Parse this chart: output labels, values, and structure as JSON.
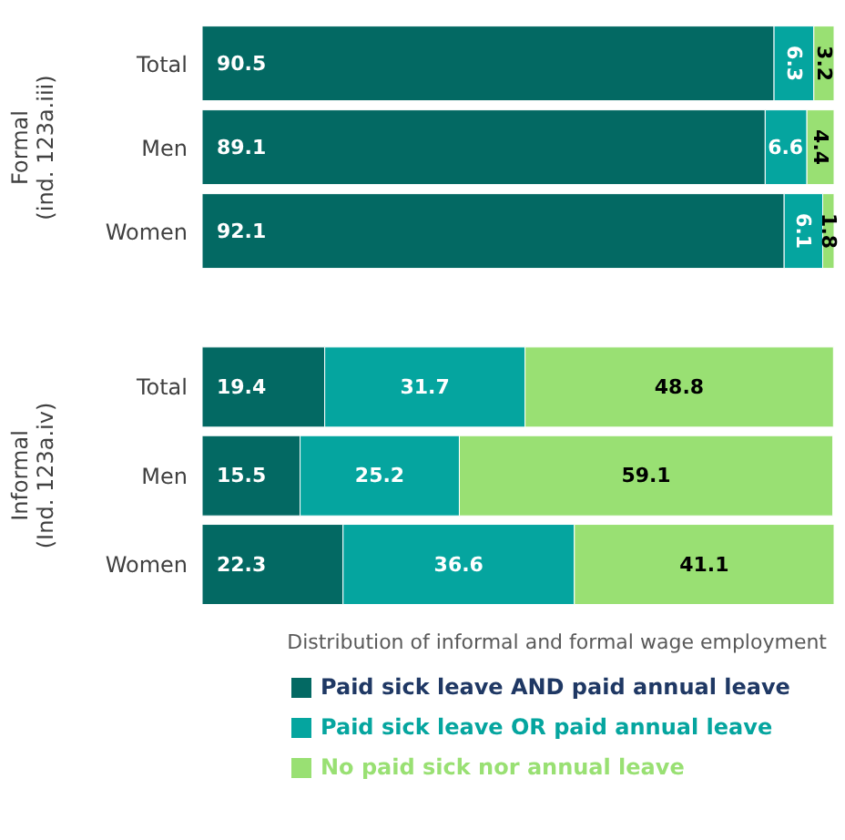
{
  "chart_data": [
    {
      "type": "bar",
      "orientation": "horizontal",
      "stacked": true,
      "ylabel": "Formal\n(ind. 123a.iii)",
      "categories": [
        "Total",
        "Men",
        "Women"
      ],
      "xlim": [
        0,
        100
      ],
      "tick_labels": "y",
      "data_labels": true,
      "legend": false,
      "series": [
        {
          "color": "#036963",
          "values": [
            90.5,
            89.1,
            92.1
          ]
        },
        {
          "color": "#05a59f",
          "values": [
            6.3,
            6.6,
            6.1
          ]
        },
        {
          "color": "#99e073",
          "values": [
            3.2,
            4.4,
            1.8
          ]
        }
      ]
    },
    {
      "type": "bar",
      "orientation": "horizontal",
      "stacked": true,
      "ylabel": "Informal\n(Ind. 123a.iv)",
      "xlabel": "Distribution of informal and formal wage employment",
      "categories": [
        "Total",
        "Men",
        "Women"
      ],
      "xlim": [
        0,
        100
      ],
      "tick_labels": "y",
      "data_labels": true,
      "legend": "bottom",
      "series": [
        {
          "name": "Paid sick leave AND paid annual leave",
          "color": "#036963",
          "values": [
            19.4,
            15.5,
            22.3
          ]
        },
        {
          "name": "Paid sick leave OR paid annual leave",
          "color": "#05a59f",
          "values": [
            31.7,
            25.2,
            36.6
          ]
        },
        {
          "name": "No paid sick nor annual leave",
          "color": "#99e073",
          "values": [
            48.8,
            59.1,
            41.1
          ]
        }
      ]
    }
  ]
}
